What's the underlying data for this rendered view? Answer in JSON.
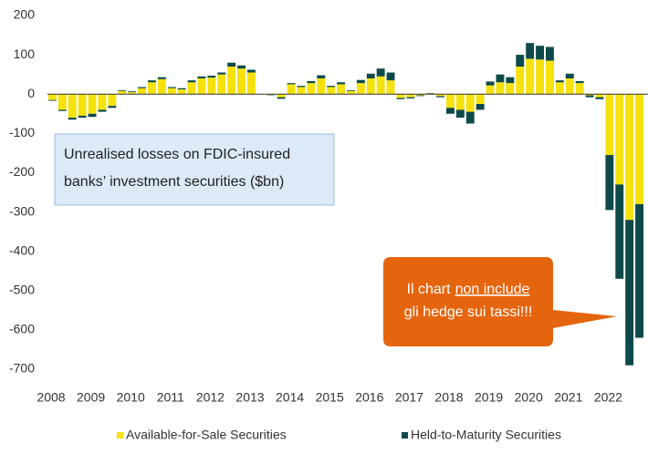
{
  "chart_data": {
    "type": "stacked_bar",
    "annotation": "Unrealised losses on FDIC-insured banks’ investment securities ($bn)",
    "callout": [
      "Il chart",
      "non include",
      "gli hedge sui tassi!!!"
    ],
    "categories": [
      "2008",
      null,
      null,
      null,
      "2009",
      null,
      null,
      null,
      "2010",
      null,
      null,
      null,
      "2011",
      null,
      null,
      null,
      "2012",
      null,
      null,
      null,
      "2013",
      null,
      null,
      null,
      "2014",
      null,
      null,
      null,
      "2015",
      null,
      null,
      null,
      "2016",
      null,
      null,
      null,
      "2017",
      null,
      null,
      null,
      "2018",
      null,
      null,
      null,
      "2019",
      null,
      null,
      null,
      "2020",
      null,
      null,
      null,
      "2021",
      null,
      null,
      null,
      "2022",
      null,
      null,
      null
    ],
    "series": [
      {
        "name": "Available-for-Sale Securities",
        "color": "#f5e20c",
        "values": [
          -15,
          -40,
          -60,
          -55,
          -50,
          -40,
          -30,
          8,
          5,
          15,
          30,
          38,
          15,
          12,
          30,
          40,
          42,
          50,
          70,
          65,
          55,
          -1,
          -2,
          -8,
          25,
          18,
          28,
          40,
          18,
          25,
          8,
          28,
          40,
          45,
          35,
          -10,
          -8,
          -3,
          2,
          -5,
          -35,
          -40,
          -45,
          -25,
          22,
          30,
          28,
          70,
          90,
          88,
          85,
          30,
          40,
          28,
          -3,
          -8,
          -155,
          -230,
          -320,
          -280
        ]
      },
      {
        "name": "Held-to-Maturity Securities",
        "color": "#0f4a4a",
        "values": [
          -2,
          -3,
          -5,
          -5,
          -8,
          -5,
          -5,
          2,
          2,
          3,
          5,
          5,
          3,
          3,
          5,
          5,
          5,
          5,
          10,
          8,
          7,
          0,
          -1,
          -4,
          3,
          3,
          5,
          8,
          3,
          5,
          2,
          8,
          12,
          20,
          20,
          -3,
          -3,
          -2,
          1,
          -3,
          -15,
          -20,
          -30,
          -15,
          10,
          20,
          15,
          30,
          40,
          35,
          35,
          5,
          12,
          5,
          -5,
          -5,
          -140,
          -240,
          -370,
          -340
        ]
      }
    ],
    "ylim": [
      -700,
      200
    ],
    "yticks": [
      200,
      100,
      0,
      -100,
      -200,
      -300,
      -400,
      -500,
      -600,
      -700
    ],
    "grid": false
  }
}
